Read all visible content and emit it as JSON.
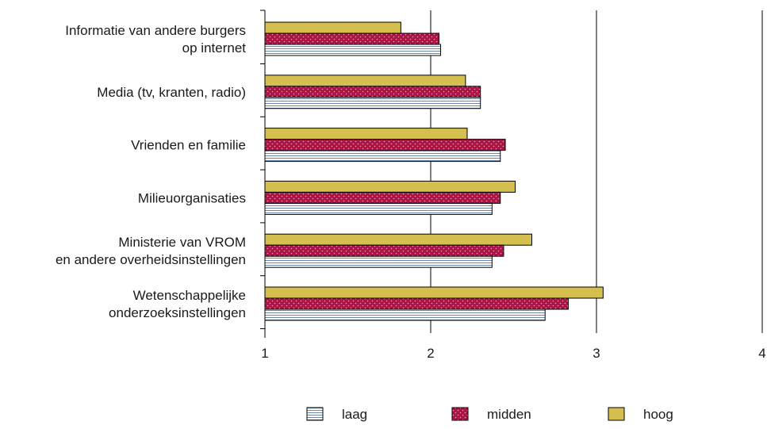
{
  "chart_data": {
    "type": "bar",
    "orientation": "horizontal",
    "categories": [
      [
        "Informatie van andere burgers",
        "op internet"
      ],
      [
        "Media (tv, kranten, radio)"
      ],
      [
        "Vrienden en familie"
      ],
      [
        "Milieuorganisaties"
      ],
      [
        "Ministerie van VROM",
        "en andere overheidsinstellingen"
      ],
      [
        "Wetenschappelijke ",
        "onderzoeksinstellingen"
      ]
    ],
    "series": [
      {
        "name": "hoog",
        "values": [
          1.82,
          2.21,
          2.22,
          2.51,
          2.61,
          3.04
        ]
      },
      {
        "name": "midden",
        "values": [
          2.05,
          2.3,
          2.45,
          2.42,
          2.44,
          2.83
        ]
      },
      {
        "name": "laag",
        "values": [
          2.06,
          2.3,
          2.42,
          2.37,
          2.37,
          2.69
        ]
      }
    ],
    "xlim": [
      1,
      4
    ],
    "xticks": [
      "1",
      "2",
      "3",
      "4"
    ],
    "grid": "vertical",
    "legend_position": "bottom",
    "legend_order": [
      "laag",
      "midden",
      "hoog"
    ],
    "title": "",
    "xlabel": "",
    "ylabel": ""
  },
  "colors": {
    "hoog": "#d4bf4f",
    "midden": "#ab1444",
    "midden_dots": "#e8a0b6",
    "laag_bg": "#ffffff",
    "laag_lines": "#6b86ad",
    "axis": "#000000",
    "bar_edge": "#000000"
  }
}
